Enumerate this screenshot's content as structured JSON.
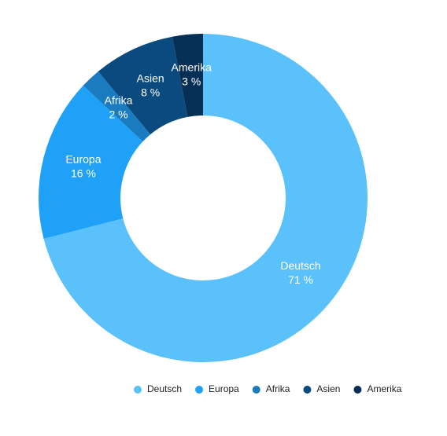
{
  "chart_data": {
    "type": "donut",
    "categories": [
      "Deutsch",
      "Europa",
      "Afrika",
      "Asien",
      "Amerika"
    ],
    "values": [
      71,
      16,
      2,
      8,
      3
    ],
    "value_labels": [
      "71 %",
      "16 %",
      "2 %",
      "8 %",
      "3 %"
    ],
    "colors": [
      "#5ac1fb",
      "#1ea1f7",
      "#1a7bc0",
      "#0b4a7e",
      "#062f55"
    ],
    "legend": "bottom"
  }
}
